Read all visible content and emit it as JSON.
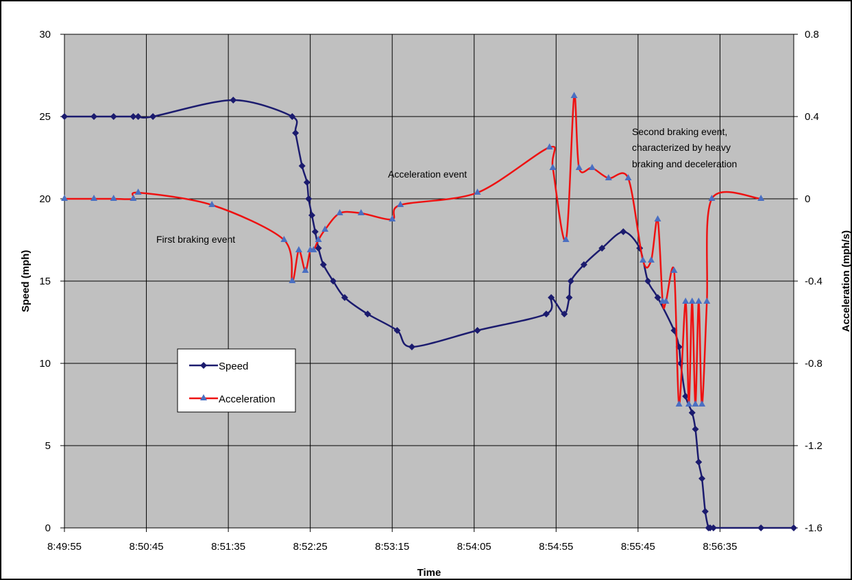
{
  "chart_data": {
    "type": "line",
    "xlabel": "Time",
    "ylabel": "Speed (mph)",
    "y2label": "Acceleration (mph/s)",
    "x_ticks": [
      "8:49:55",
      "8:50:45",
      "8:51:35",
      "8:52:25",
      "8:53:15",
      "8:54:05",
      "8:54:55",
      "8:55:45",
      "8:56:35"
    ],
    "x_range": [
      "8:49:55",
      "8:57:20"
    ],
    "ylim": [
      0,
      30
    ],
    "y_ticks": [
      0,
      5,
      10,
      15,
      20,
      25,
      30
    ],
    "y2lim": [
      -1.6,
      0.8
    ],
    "y2_ticks": [
      -1.6,
      -1.2,
      -0.8,
      -0.4,
      0,
      0.4,
      0.8
    ],
    "grid": true,
    "plot_background": "#c0c0c0",
    "legend_position": "middle-left",
    "series": [
      {
        "name": "Speed",
        "axis": "left",
        "color": "#1b1b6e",
        "marker": "diamond",
        "x": [
          "8:49:55",
          "8:50:13",
          "8:50:25",
          "8:50:37",
          "8:50:40",
          "8:50:49",
          "8:51:38",
          "8:52:14",
          "8:52:16",
          "8:52:20",
          "8:52:23",
          "8:52:24",
          "8:52:26",
          "8:52:28",
          "8:52:30",
          "8:52:33",
          "8:52:39",
          "8:52:46",
          "8:53:00",
          "8:53:18",
          "8:53:27",
          "8:54:07",
          "8:54:49",
          "8:54:52",
          "8:55:00",
          "8:55:03",
          "8:55:04",
          "8:55:12",
          "8:55:23",
          "8:55:36",
          "8:55:46",
          "8:55:51",
          "8:55:57",
          "8:56:07",
          "8:56:10",
          "8:56:11",
          "8:56:14",
          "8:56:18",
          "8:56:20",
          "8:56:22",
          "8:56:24",
          "8:56:26",
          "8:56:28",
          "8:56:29",
          "8:56:31",
          "8:57:00",
          "8:57:20"
        ],
        "values": [
          25,
          25,
          25,
          25,
          25,
          25,
          26,
          25,
          24,
          22,
          21,
          20,
          19,
          18,
          17,
          16,
          15,
          14,
          13,
          12,
          11,
          12,
          13,
          14,
          13,
          14,
          15,
          16,
          17,
          18,
          17,
          15,
          14,
          12,
          11,
          10,
          8,
          7,
          6,
          4,
          3,
          1,
          0,
          0,
          0,
          0,
          0
        ]
      },
      {
        "name": "Acceleration",
        "axis": "right",
        "color": "#ee1111",
        "marker": "triangle",
        "x": [
          "8:49:55",
          "8:50:13",
          "8:50:25",
          "8:50:37",
          "8:50:40",
          "8:51:25",
          "8:52:09",
          "8:52:14",
          "8:52:18",
          "8:52:22",
          "8:52:25",
          "8:52:27",
          "8:52:30",
          "8:52:34",
          "8:52:43",
          "8:52:56",
          "8:53:15",
          "8:53:20",
          "8:54:07",
          "8:54:51",
          "8:54:53",
          "8:55:01",
          "8:55:06",
          "8:55:09",
          "8:55:17",
          "8:55:27",
          "8:55:39",
          "8:55:48",
          "8:55:53",
          "8:55:57",
          "8:56:00",
          "8:56:02",
          "8:56:07",
          "8:56:10",
          "8:56:14",
          "8:56:16",
          "8:56:18",
          "8:56:20",
          "8:56:22",
          "8:56:24",
          "8:56:27",
          "8:56:30",
          "8:57:00"
        ],
        "values": [
          0,
          0,
          0,
          0,
          0.03,
          -0.03,
          -0.2,
          -0.4,
          -0.25,
          -0.35,
          -0.25,
          -0.25,
          -0.2,
          -0.15,
          -0.07,
          -0.07,
          -0.1,
          -0.03,
          0.03,
          0.25,
          0.15,
          -0.2,
          0.5,
          0.15,
          0.15,
          0.1,
          0.1,
          -0.3,
          -0.3,
          -0.1,
          -0.5,
          -0.5,
          -0.35,
          -1.0,
          -0.5,
          -1.0,
          -0.5,
          -1.0,
          -0.5,
          -1.0,
          -0.5,
          0,
          0
        ]
      }
    ],
    "annotations": [
      "First braking event",
      "Acceleration event",
      "Second braking event,",
      "characterized by heavy",
      "braking and deceleration"
    ]
  }
}
